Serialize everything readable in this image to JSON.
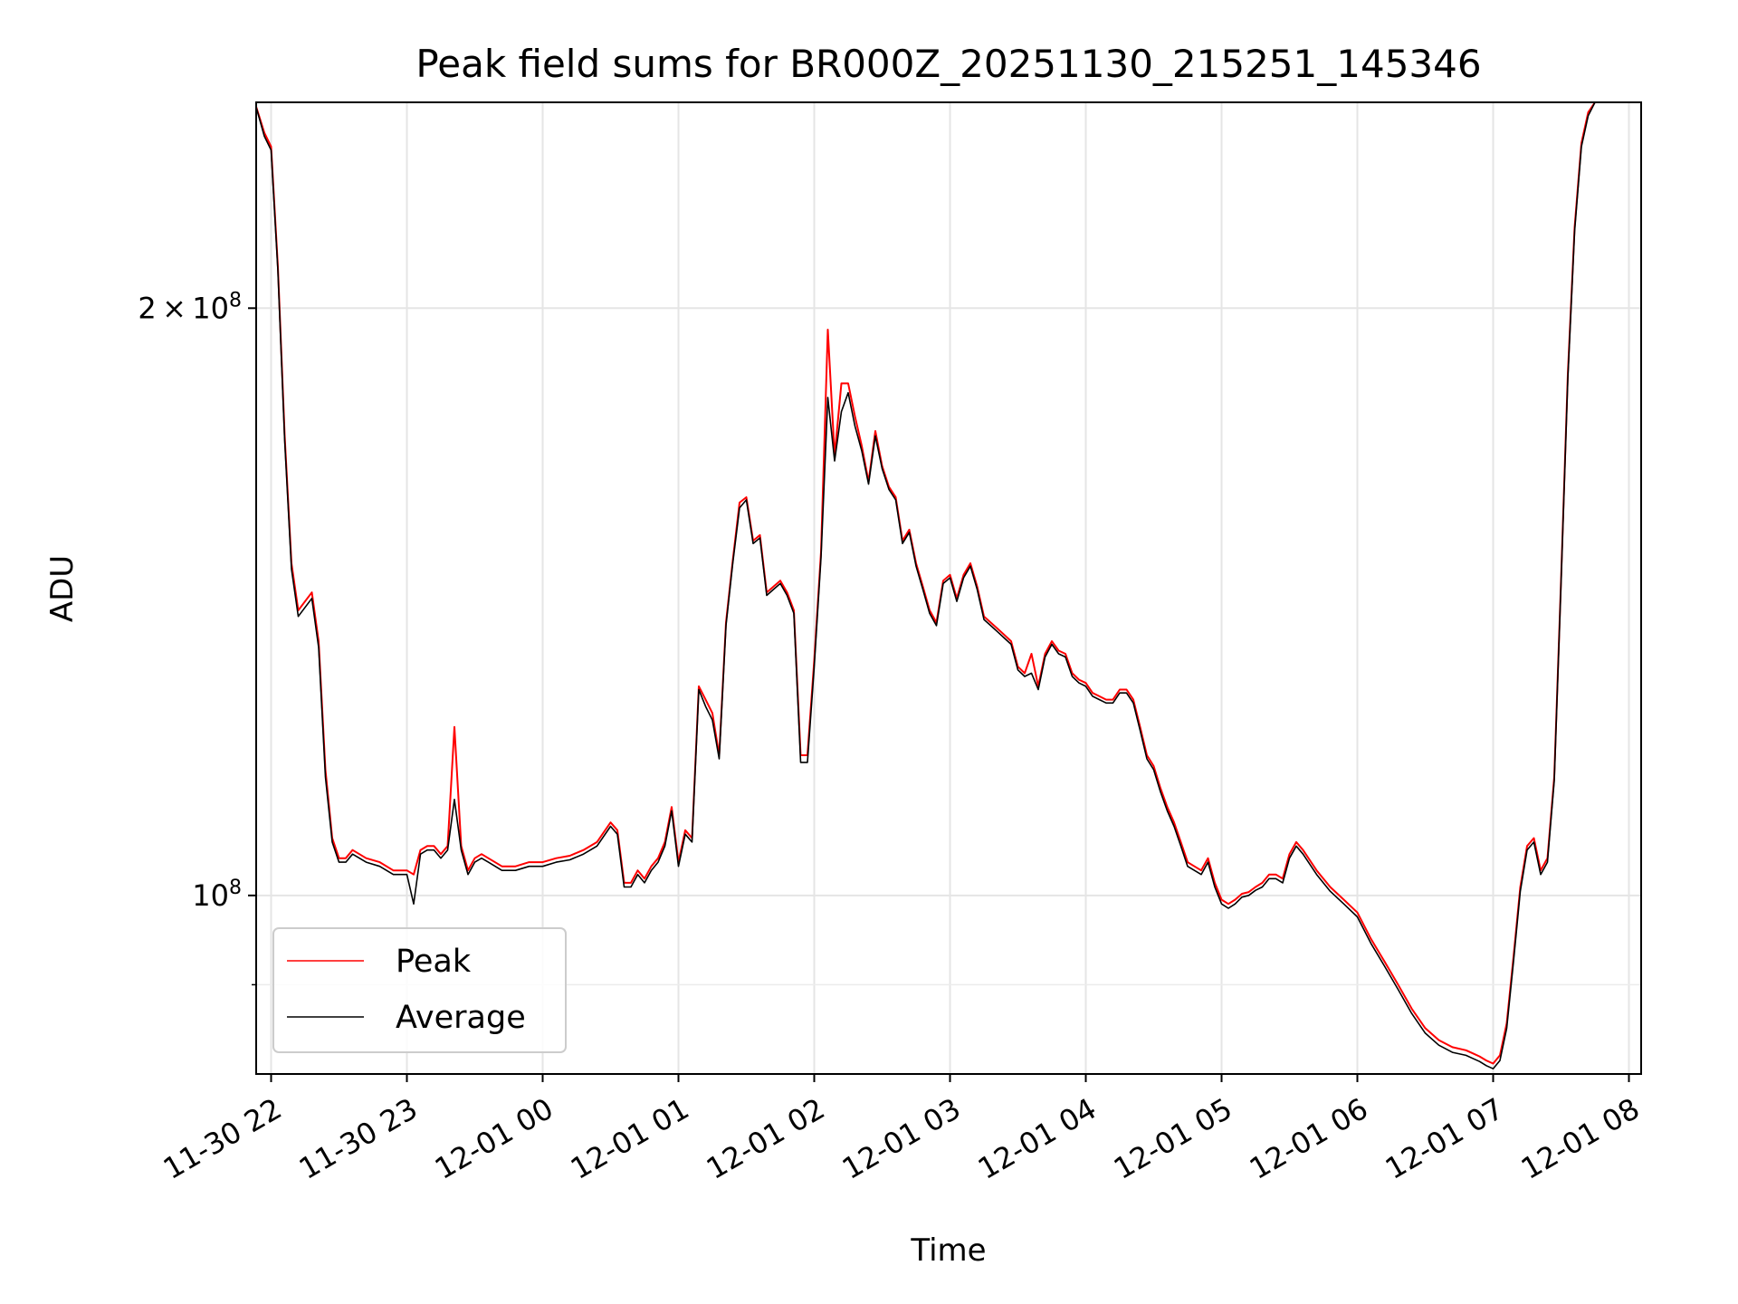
{
  "chart_data": {
    "type": "line",
    "title": "Peak field sums for BR000Z_20251130_215251_145346",
    "xlabel": "Time",
    "ylabel": "ADU",
    "y_scale": "log",
    "ylim": [
      81000000,
      255000000
    ],
    "xlim_hours_from_2025_11_30_21_00": [
      0.89,
      11.09
    ],
    "grid": true,
    "legend_position": "lower-left",
    "x_ticks": [
      {
        "label": "11-30 22",
        "hour": 1
      },
      {
        "label": "11-30 23",
        "hour": 2
      },
      {
        "label": "12-01 00",
        "hour": 3
      },
      {
        "label": "12-01 01",
        "hour": 4
      },
      {
        "label": "12-01 02",
        "hour": 5
      },
      {
        "label": "12-01 03",
        "hour": 6
      },
      {
        "label": "12-01 04",
        "hour": 7
      },
      {
        "label": "12-01 05",
        "hour": 8
      },
      {
        "label": "12-01 06",
        "hour": 9
      },
      {
        "label": "12-01 07",
        "hour": 10
      },
      {
        "label": "12-01 08",
        "hour": 11
      }
    ],
    "y_major_ticks": [
      {
        "label_mantissa": "2",
        "label_times": "×",
        "label_base": "10",
        "label_exp": "8",
        "value": 200000000
      },
      {
        "label_mantissa": "",
        "label_times": "",
        "label_base": "10",
        "label_exp": "8",
        "value": 100000000
      }
    ],
    "y_minor_ticks": [
      90000000
    ],
    "x_hours": [
      0.88,
      0.95,
      1.0,
      1.05,
      1.1,
      1.15,
      1.2,
      1.3,
      1.35,
      1.4,
      1.45,
      1.5,
      1.55,
      1.6,
      1.7,
      1.8,
      1.9,
      2.0,
      2.05,
      2.1,
      2.15,
      2.2,
      2.25,
      2.3,
      2.35,
      2.4,
      2.45,
      2.5,
      2.55,
      2.6,
      2.7,
      2.8,
      2.9,
      3.0,
      3.1,
      3.2,
      3.3,
      3.4,
      3.5,
      3.55,
      3.6,
      3.65,
      3.7,
      3.75,
      3.8,
      3.85,
      3.9,
      3.95,
      4.0,
      4.05,
      4.1,
      4.15,
      4.2,
      4.25,
      4.3,
      4.35,
      4.4,
      4.45,
      4.5,
      4.55,
      4.6,
      4.65,
      4.7,
      4.75,
      4.8,
      4.85,
      4.9,
      4.95,
      5.0,
      5.05,
      5.1,
      5.15,
      5.2,
      5.25,
      5.3,
      5.35,
      5.4,
      5.45,
      5.5,
      5.55,
      5.6,
      5.65,
      5.7,
      5.75,
      5.8,
      5.85,
      5.9,
      5.95,
      6.0,
      6.05,
      6.1,
      6.15,
      6.2,
      6.25,
      6.3,
      6.35,
      6.4,
      6.45,
      6.5,
      6.55,
      6.6,
      6.65,
      6.7,
      6.75,
      6.8,
      6.85,
      6.9,
      6.95,
      7.0,
      7.05,
      7.1,
      7.15,
      7.2,
      7.25,
      7.3,
      7.35,
      7.4,
      7.45,
      7.5,
      7.55,
      7.6,
      7.65,
      7.7,
      7.75,
      7.8,
      7.85,
      7.9,
      7.95,
      8.0,
      8.05,
      8.1,
      8.15,
      8.2,
      8.25,
      8.3,
      8.35,
      8.4,
      8.45,
      8.5,
      8.55,
      8.6,
      8.7,
      8.8,
      8.9,
      9.0,
      9.1,
      9.2,
      9.3,
      9.4,
      9.5,
      9.6,
      9.7,
      9.8,
      9.85,
      9.9,
      9.95,
      10.0,
      10.05,
      10.1,
      10.15,
      10.2,
      10.25,
      10.3,
      10.35,
      10.4,
      10.45,
      10.5,
      10.55,
      10.6,
      10.65,
      10.7,
      10.75,
      10.8,
      10.85,
      10.9,
      10.95,
      11.0,
      11.03
    ],
    "series": [
      {
        "name": "Peak",
        "color": "#ff0000",
        "values": [
          255000000,
          246000000,
          242000000,
          210000000,
          172000000,
          148000000,
          140000000,
          143000000,
          135000000,
          116000000,
          107000000,
          104500000,
          104500000,
          105500000,
          104500000,
          104000000,
          103000000,
          103000000,
          102500000,
          105500000,
          106000000,
          106000000,
          105000000,
          106000000,
          122000000,
          106000000,
          103000000,
          104500000,
          105000000,
          104500000,
          103500000,
          103500000,
          104000000,
          104000000,
          104500000,
          104800000,
          105500000,
          106500000,
          109000000,
          108000000,
          101500000,
          101500000,
          103000000,
          102000000,
          103500000,
          104500000,
          106500000,
          111000000,
          104000000,
          108000000,
          107000000,
          128000000,
          126000000,
          124000000,
          118000000,
          138000000,
          148500000,
          159000000,
          160000000,
          152000000,
          153000000,
          143000000,
          144000000,
          145000000,
          143000000,
          140000000,
          118000000,
          118000000,
          132000000,
          150000000,
          195000000,
          168000000,
          183000000,
          183000000,
          176000000,
          170000000,
          163000000,
          173000000,
          166000000,
          162000000,
          160000000,
          152000000,
          154000000,
          148000000,
          144000000,
          140000000,
          138000000,
          145000000,
          146000000,
          142000000,
          146000000,
          148000000,
          144000000,
          139000000,
          138000000,
          137000000,
          136000000,
          135000000,
          131000000,
          130000000,
          133000000,
          128000000,
          133000000,
          135000000,
          133500000,
          133000000,
          130000000,
          129000000,
          128500000,
          127000000,
          126500000,
          126000000,
          126000000,
          127500000,
          127500000,
          126000000,
          122000000,
          118000000,
          116500000,
          113500000,
          111000000,
          109000000,
          106500000,
          104000000,
          103500000,
          103000000,
          104500000,
          101500000,
          99500000,
          99000000,
          99500000,
          100200000,
          100400000,
          101000000,
          101500000,
          102500000,
          102500000,
          102000000,
          105000000,
          106500000,
          105500000,
          103000000,
          101000000,
          99500000,
          98000000,
          95000000,
          92500000,
          90000000,
          87500000,
          85500000,
          84300000,
          83600000,
          83300000,
          83000000,
          82700000,
          82300000,
          82000000,
          82800000,
          86000000,
          93000000,
          101000000,
          106000000,
          107000000,
          103000000,
          104500000,
          115000000,
          145000000,
          185000000,
          220000000,
          243000000,
          252000000,
          255000000,
          255000000
        ]
      },
      {
        "name": "Average",
        "color": "#000000",
        "values": [
          255000000,
          245000000,
          241000000,
          209000000,
          171000000,
          147000000,
          139000000,
          142000000,
          134000000,
          115000000,
          106500000,
          104000000,
          104000000,
          105000000,
          104000000,
          103500000,
          102500000,
          102500000,
          99000000,
          105000000,
          105500000,
          105500000,
          104500000,
          105500000,
          112000000,
          105500000,
          102500000,
          104000000,
          104500000,
          104000000,
          103000000,
          103000000,
          103500000,
          103500000,
          104000000,
          104300000,
          105000000,
          106000000,
          108500000,
          107500000,
          101000000,
          101000000,
          102500000,
          101500000,
          103000000,
          104000000,
          106000000,
          110500000,
          103500000,
          107500000,
          106500000,
          127500000,
          125000000,
          123000000,
          117500000,
          137500000,
          148000000,
          158000000,
          159500000,
          151500000,
          152500000,
          142500000,
          143500000,
          144500000,
          142500000,
          139500000,
          117000000,
          117000000,
          131000000,
          149000000,
          180000000,
          167000000,
          177000000,
          181000000,
          174000000,
          169000000,
          162500000,
          172000000,
          165500000,
          161500000,
          159500000,
          151500000,
          153500000,
          147500000,
          143500000,
          139500000,
          137500000,
          144500000,
          145500000,
          141500000,
          145500000,
          147500000,
          143500000,
          138500000,
          137500000,
          136500000,
          135500000,
          134500000,
          130500000,
          129500000,
          130000000,
          127500000,
          132500000,
          134500000,
          133000000,
          132500000,
          129500000,
          128500000,
          128000000,
          126500000,
          126000000,
          125500000,
          125500000,
          127000000,
          127000000,
          125500000,
          121500000,
          117500000,
          116000000,
          113000000,
          110500000,
          108500000,
          106000000,
          103500000,
          103000000,
          102500000,
          104000000,
          101000000,
          99000000,
          98500000,
          99000000,
          99800000,
          100000000,
          100600000,
          101000000,
          102000000,
          102000000,
          101500000,
          104500000,
          106000000,
          105000000,
          102500000,
          100500000,
          99000000,
          97500000,
          94500000,
          92000000,
          89500000,
          87000000,
          85000000,
          83800000,
          83100000,
          82800000,
          82500000,
          82200000,
          81800000,
          81500000,
          82300000,
          85500000,
          92500000,
          100500000,
          105500000,
          106500000,
          102500000,
          104000000,
          114500000,
          144500000,
          184000000,
          219000000,
          242000000,
          251000000,
          255000000,
          255000000
        ]
      }
    ]
  }
}
